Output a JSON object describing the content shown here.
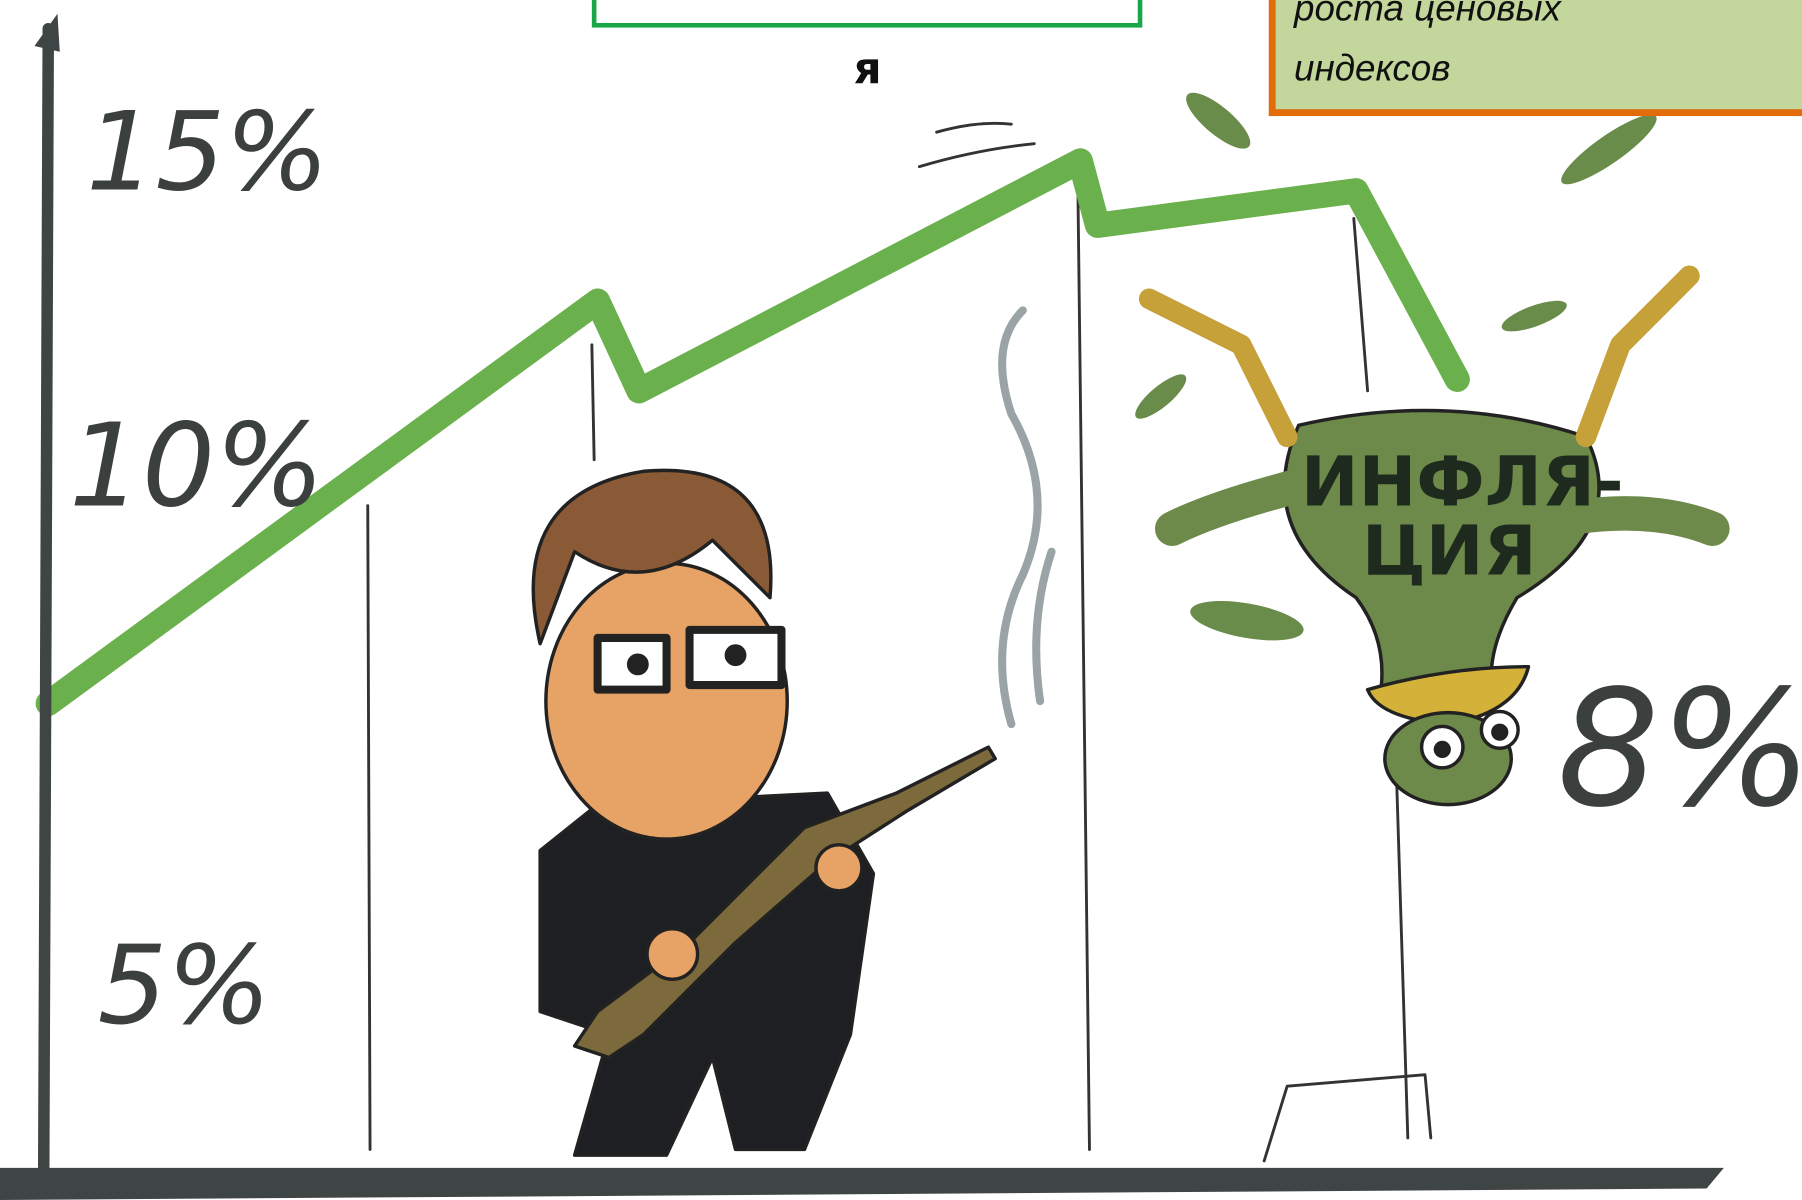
{
  "green_box": {
    "text_tail": "я"
  },
  "note_box": {
    "lines": [
      "роста ценовых",
      "индексов"
    ]
  },
  "cartoon": {
    "axis_labels": [
      "15%",
      "10%",
      "5%"
    ],
    "inflation_label": [
      "ИНФЛЯ-",
      "ЦИЯ"
    ],
    "inflation_value": "8%"
  }
}
